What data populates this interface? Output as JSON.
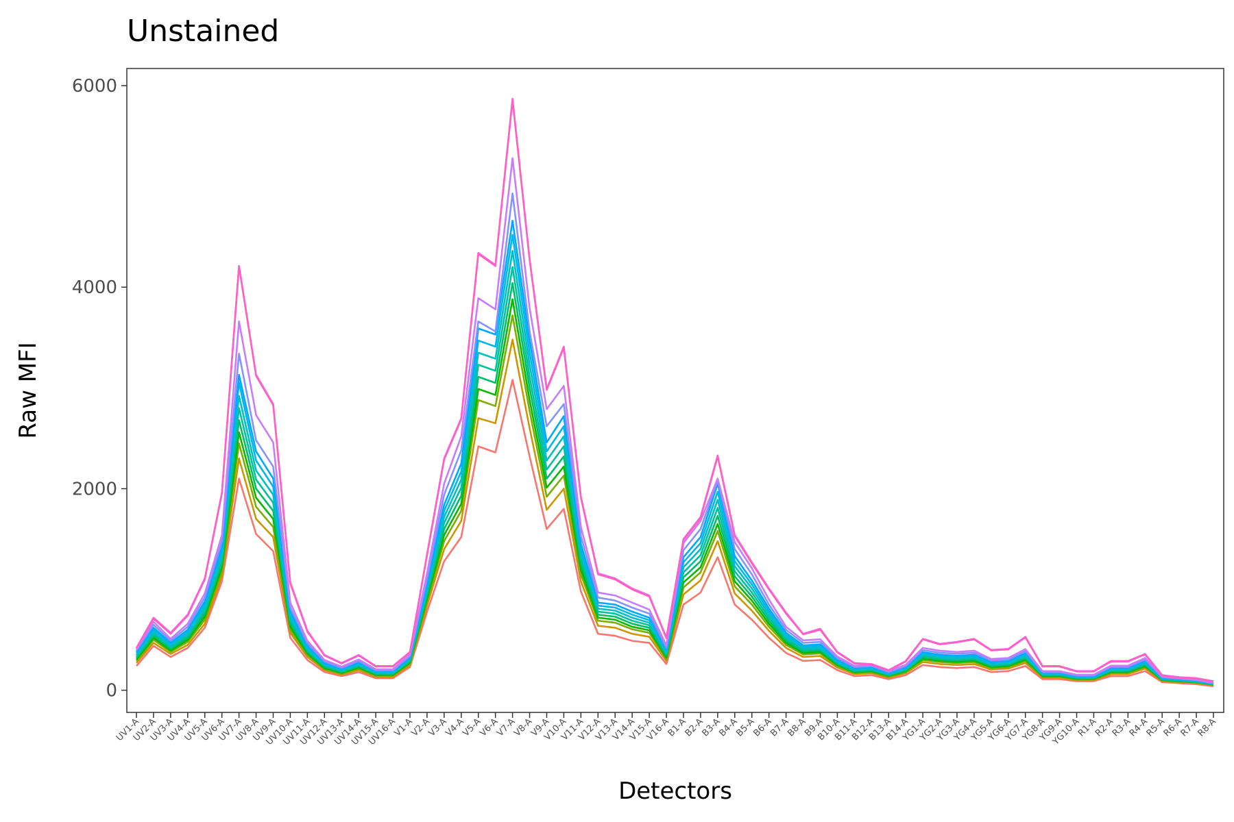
{
  "chart_data": {
    "type": "line",
    "title": "Unstained",
    "xlabel": "Detectors",
    "ylabel": "Raw MFI",
    "ylim": [
      -220,
      6170
    ],
    "yticks": [
      0,
      2000,
      4000,
      6000
    ],
    "grid": false,
    "legend": "none",
    "categories": [
      "UV1-A",
      "UV2-A",
      "UV3-A",
      "UV4-A",
      "UV5-A",
      "UV6-A",
      "UV7-A",
      "UV8-A",
      "UV9-A",
      "UV10-A",
      "UV11-A",
      "UV12-A",
      "UV13-A",
      "UV14-A",
      "UV15-A",
      "UV16-A",
      "V1-A",
      "V2-A",
      "V3-A",
      "V4-A",
      "V5-A",
      "V6-A",
      "V7-A",
      "V8-A",
      "V9-A",
      "V10-A",
      "V11-A",
      "V12-A",
      "V13-A",
      "V14-A",
      "V15-A",
      "V16-A",
      "B1-A",
      "B2-A",
      "B3-A",
      "B4-A",
      "B5-A",
      "B6-A",
      "B7-A",
      "B8-A",
      "B9-A",
      "B10-A",
      "B11-A",
      "B12-A",
      "B13-A",
      "B14-A",
      "YG1-A",
      "YG2-A",
      "YG3-A",
      "YG4-A",
      "YG5-A",
      "YG6-A",
      "YG7-A",
      "YG8-A",
      "YG9-A",
      "YG10-A",
      "R1-A",
      "R2-A",
      "R3-A",
      "R4-A",
      "R5-A",
      "R6-A",
      "R7-A",
      "R8-A"
    ],
    "series": [
      {
        "color": "#F8766D",
        "values": [
          240,
          440,
          330,
          420,
          620,
          1080,
          2100,
          1550,
          1380,
          520,
          300,
          180,
          140,
          180,
          120,
          120,
          230,
          780,
          1280,
          1520,
          2420,
          2360,
          3080,
          2320,
          1600,
          1800,
          980,
          560,
          540,
          490,
          470,
          260,
          850,
          970,
          1320,
          850,
          700,
          520,
          370,
          290,
          300,
          200,
          140,
          150,
          110,
          150,
          250,
          230,
          220,
          230,
          180,
          190,
          240,
          110,
          110,
          90,
          90,
          140,
          140,
          190,
          80,
          70,
          60,
          40
        ]
      },
      {
        "color": "#CD9600",
        "values": [
          270,
          470,
          360,
          450,
          660,
          1130,
          2300,
          1700,
          1520,
          570,
          330,
          200,
          155,
          200,
          135,
          135,
          250,
          840,
          1400,
          1680,
          2700,
          2650,
          3480,
          2600,
          1790,
          2000,
          1080,
          640,
          620,
          560,
          530,
          290,
          950,
          1090,
          1480,
          960,
          790,
          590,
          420,
          330,
          340,
          225,
          160,
          170,
          125,
          170,
          280,
          260,
          250,
          260,
          205,
          215,
          270,
          125,
          125,
          100,
          100,
          160,
          160,
          215,
          90,
          80,
          70,
          50
        ]
      },
      {
        "color": "#7CAE00",
        "values": [
          290,
          500,
          380,
          480,
          700,
          1180,
          2450,
          1820,
          1620,
          600,
          350,
          210,
          165,
          215,
          145,
          145,
          265,
          880,
          1480,
          1780,
          2880,
          2820,
          3720,
          2770,
          1920,
          2130,
          1150,
          690,
          670,
          605,
          570,
          310,
          1020,
          1170,
          1580,
          1030,
          850,
          630,
          450,
          355,
          365,
          240,
          170,
          180,
          135,
          180,
          300,
          280,
          270,
          280,
          220,
          230,
          290,
          135,
          135,
          108,
          108,
          172,
          172,
          230,
          97,
          86,
          76,
          54
        ]
      },
      {
        "color": "#0CB702",
        "values": [
          305,
          520,
          395,
          500,
          730,
          1220,
          2560,
          1910,
          1700,
          630,
          365,
          220,
          172,
          225,
          152,
          152,
          275,
          910,
          1540,
          1850,
          2990,
          2930,
          3880,
          2880,
          2010,
          2220,
          1200,
          720,
          700,
          630,
          595,
          325,
          1070,
          1220,
          1650,
          1080,
          890,
          660,
          470,
          370,
          380,
          250,
          178,
          188,
          141,
          188,
          313,
          292,
          282,
          292,
          230,
          240,
          303,
          141,
          141,
          113,
          113,
          180,
          180,
          240,
          101,
          90,
          79,
          56
        ]
      },
      {
        "color": "#00BE67",
        "values": [
          320,
          540,
          410,
          520,
          760,
          1260,
          2680,
          2000,
          1780,
          660,
          380,
          230,
          180,
          235,
          160,
          160,
          285,
          940,
          1600,
          1930,
          3110,
          3050,
          4040,
          3000,
          2100,
          2320,
          1250,
          750,
          730,
          660,
          620,
          340,
          1120,
          1280,
          1730,
          1130,
          930,
          690,
          490,
          385,
          395,
          260,
          186,
          196,
          147,
          196,
          326,
          304,
          294,
          304,
          240,
          250,
          316,
          147,
          147,
          118,
          118,
          188,
          188,
          250,
          105,
          94,
          82,
          58
        ]
      },
      {
        "color": "#00C19A",
        "values": [
          335,
          560,
          425,
          540,
          790,
          1300,
          2800,
          2090,
          1860,
          690,
          395,
          240,
          188,
          245,
          167,
          167,
          295,
          970,
          1660,
          2010,
          3230,
          3170,
          4200,
          3110,
          2190,
          2420,
          1300,
          780,
          760,
          690,
          645,
          355,
          1170,
          1340,
          1810,
          1180,
          970,
          720,
          510,
          400,
          410,
          270,
          194,
          204,
          153,
          204,
          339,
          316,
          306,
          316,
          250,
          260,
          329,
          153,
          153,
          123,
          123,
          196,
          196,
          260,
          109,
          98,
          85,
          60
        ]
      },
      {
        "color": "#00BFC4",
        "values": [
          350,
          580,
          440,
          560,
          820,
          1340,
          2920,
          2180,
          1940,
          720,
          410,
          250,
          196,
          255,
          174,
          174,
          305,
          1000,
          1720,
          2090,
          3350,
          3290,
          4360,
          3230,
          2280,
          2520,
          1350,
          810,
          790,
          720,
          670,
          370,
          1220,
          1400,
          1890,
          1230,
          1010,
          750,
          530,
          415,
          425,
          280,
          202,
          212,
          159,
          212,
          352,
          328,
          318,
          328,
          260,
          270,
          342,
          159,
          159,
          128,
          128,
          204,
          204,
          270,
          113,
          102,
          88,
          62
        ]
      },
      {
        "color": "#00B8E7",
        "values": [
          365,
          600,
          455,
          580,
          850,
          1380,
          3050,
          2280,
          2020,
          750,
          425,
          260,
          204,
          265,
          181,
          181,
          315,
          1030,
          1780,
          2170,
          3470,
          3410,
          4520,
          3350,
          2370,
          2620,
          1400,
          840,
          820,
          750,
          695,
          385,
          1270,
          1460,
          1970,
          1280,
          1050,
          780,
          550,
          430,
          440,
          290,
          210,
          220,
          165,
          220,
          365,
          340,
          330,
          340,
          270,
          280,
          355,
          165,
          165,
          133,
          133,
          212,
          212,
          280,
          117,
          106,
          91,
          64
        ]
      },
      {
        "color": "#00A9FF",
        "values": [
          380,
          620,
          470,
          600,
          880,
          1420,
          3130,
          2370,
          2100,
          780,
          440,
          270,
          212,
          275,
          188,
          188,
          325,
          1060,
          1840,
          2250,
          3590,
          3530,
          4660,
          3470,
          2460,
          2720,
          1450,
          870,
          850,
          780,
          720,
          400,
          1320,
          1520,
          2050,
          1330,
          1090,
          810,
          570,
          445,
          455,
          300,
          218,
          228,
          171,
          228,
          378,
          352,
          342,
          352,
          280,
          290,
          368,
          171,
          171,
          138,
          138,
          220,
          220,
          290,
          121,
          110,
          94,
          66
        ]
      },
      {
        "color": "#8494FF",
        "values": [
          395,
          650,
          490,
          630,
          920,
          1480,
          3340,
          2480,
          2220,
          820,
          465,
          285,
          222,
          290,
          197,
          197,
          340,
          1110,
          1940,
          2380,
          3660,
          3560,
          4930,
          3560,
          2620,
          2840,
          1530,
          920,
          890,
          820,
          760,
          420,
          1390,
          1600,
          2080,
          1400,
          1150,
          850,
          600,
          470,
          480,
          318,
          230,
          240,
          180,
          240,
          398,
          372,
          362,
          372,
          295,
          305,
          388,
          180,
          180,
          146,
          146,
          232,
          232,
          305,
          128,
          116,
          100,
          70
        ]
      },
      {
        "color": "#C77CFF",
        "values": [
          410,
          680,
          510,
          660,
          960,
          1540,
          3660,
          2730,
          2460,
          870,
          490,
          300,
          234,
          305,
          208,
          208,
          355,
          1160,
          2050,
          2520,
          3890,
          3780,
          5280,
          3790,
          2790,
          3020,
          1620,
          970,
          940,
          870,
          800,
          445,
          1460,
          1680,
          2100,
          1470,
          1210,
          900,
          630,
          495,
          505,
          335,
          242,
          252,
          189,
          252,
          420,
          392,
          380,
          392,
          310,
          320,
          408,
          189,
          189,
          154,
          154,
          244,
          244,
          320,
          135,
          122,
          105,
          74
        ]
      },
      {
        "color": "#ED68ED",
        "values": [
          420,
          720,
          570,
          750,
          1110,
          1960,
          4210,
          3130,
          2840,
          1070,
          590,
          350,
          270,
          350,
          240,
          240,
          380,
          1350,
          2300,
          2700,
          4340,
          4220,
          5870,
          4280,
          2990,
          3410,
          1920,
          1160,
          1110,
          1010,
          940,
          520,
          1500,
          1720,
          2330,
          1540,
          1270,
          1010,
          770,
          560,
          610,
          380,
          270,
          260,
          200,
          290,
          510,
          460,
          480,
          510,
          400,
          410,
          530,
          240,
          240,
          190,
          190,
          290,
          290,
          360,
          150,
          130,
          120,
          90
        ]
      },
      {
        "color": "#FF61C3",
        "values": [
          415,
          710,
          560,
          740,
          1100,
          1950,
          4210,
          3120,
          2830,
          1060,
          580,
          345,
          265,
          345,
          235,
          235,
          375,
          1340,
          2290,
          2690,
          4330,
          4210,
          5860,
          4270,
          2980,
          3400,
          1910,
          1150,
          1100,
          1000,
          930,
          515,
          1490,
          1710,
          2320,
          1530,
          1260,
          1000,
          760,
          555,
          600,
          375,
          265,
          255,
          195,
          285,
          505,
          455,
          475,
          505,
          395,
          405,
          525,
          235,
          235,
          185,
          185,
          285,
          285,
          355,
          145,
          125,
          115,
          85
        ]
      }
    ]
  }
}
